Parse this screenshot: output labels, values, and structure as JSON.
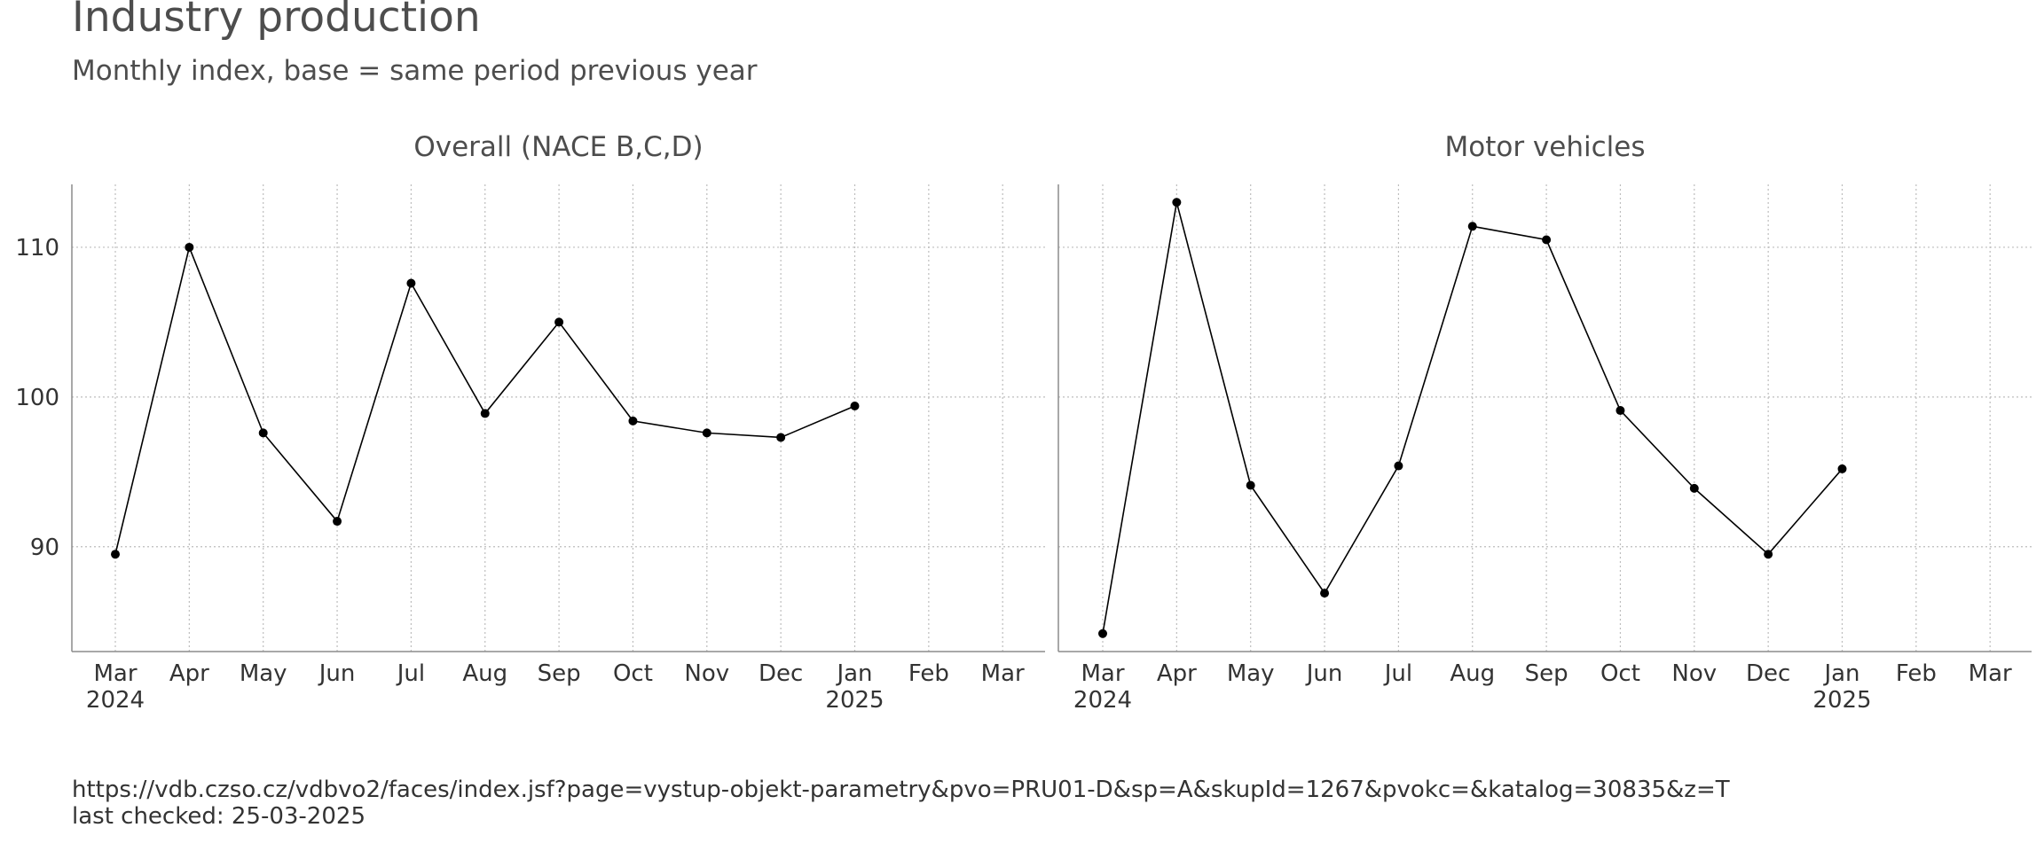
{
  "title": "Industry production",
  "subtitle": "Monthly index, base = same period previous year",
  "caption": {
    "source": "https://vdb.czso.cz/vdbvo2/faces/index.jsf?page=vystup-objekt-parametry&pvo=PRU01-D&sp=A&skupId=1267&pvokc=&katalog=30835&z=T",
    "checked": "last checked: 25-03-2025"
  },
  "chart_data": [
    {
      "type": "line",
      "title": "Overall (NACE B,C,D)",
      "x_ticks": [
        "Mar\n2024",
        "Apr",
        "May",
        "Jun",
        "Jul",
        "Aug",
        "Sep",
        "Oct",
        "Nov",
        "Dec",
        "Jan\n2025",
        "Feb",
        "Mar"
      ],
      "y_ticks": [
        90,
        100,
        110
      ],
      "ylim": [
        83.0,
        114.2
      ],
      "grid": true,
      "series": [
        {
          "x": [
            "Mar 2024",
            "Apr 2024",
            "May 2024",
            "Jun 2024",
            "Jul 2024",
            "Aug 2024",
            "Sep 2024",
            "Oct 2024",
            "Nov 2024",
            "Dec 2024",
            "Jan 2025"
          ],
          "values": [
            89.5,
            110.0,
            97.6,
            91.7,
            107.6,
            98.9,
            105.0,
            98.4,
            97.6,
            97.3,
            99.4
          ]
        }
      ]
    },
    {
      "type": "line",
      "title": "Motor vehicles",
      "x_ticks": [
        "Mar\n2024",
        "Apr",
        "May",
        "Jun",
        "Jul",
        "Aug",
        "Sep",
        "Oct",
        "Nov",
        "Dec",
        "Jan\n2025",
        "Feb",
        "Mar"
      ],
      "y_ticks": [
        90,
        100,
        110
      ],
      "ylim": [
        83.0,
        114.2
      ],
      "grid": true,
      "series": [
        {
          "x": [
            "Mar 2024",
            "Apr 2024",
            "May 2024",
            "Jun 2024",
            "Jul 2024",
            "Aug 2024",
            "Sep 2024",
            "Oct 2024",
            "Nov 2024",
            "Dec 2024",
            "Jan 2025"
          ],
          "values": [
            84.2,
            113.0,
            94.1,
            86.9,
            95.4,
            111.4,
            110.5,
            99.1,
            93.9,
            89.5,
            95.2
          ]
        }
      ]
    }
  ]
}
